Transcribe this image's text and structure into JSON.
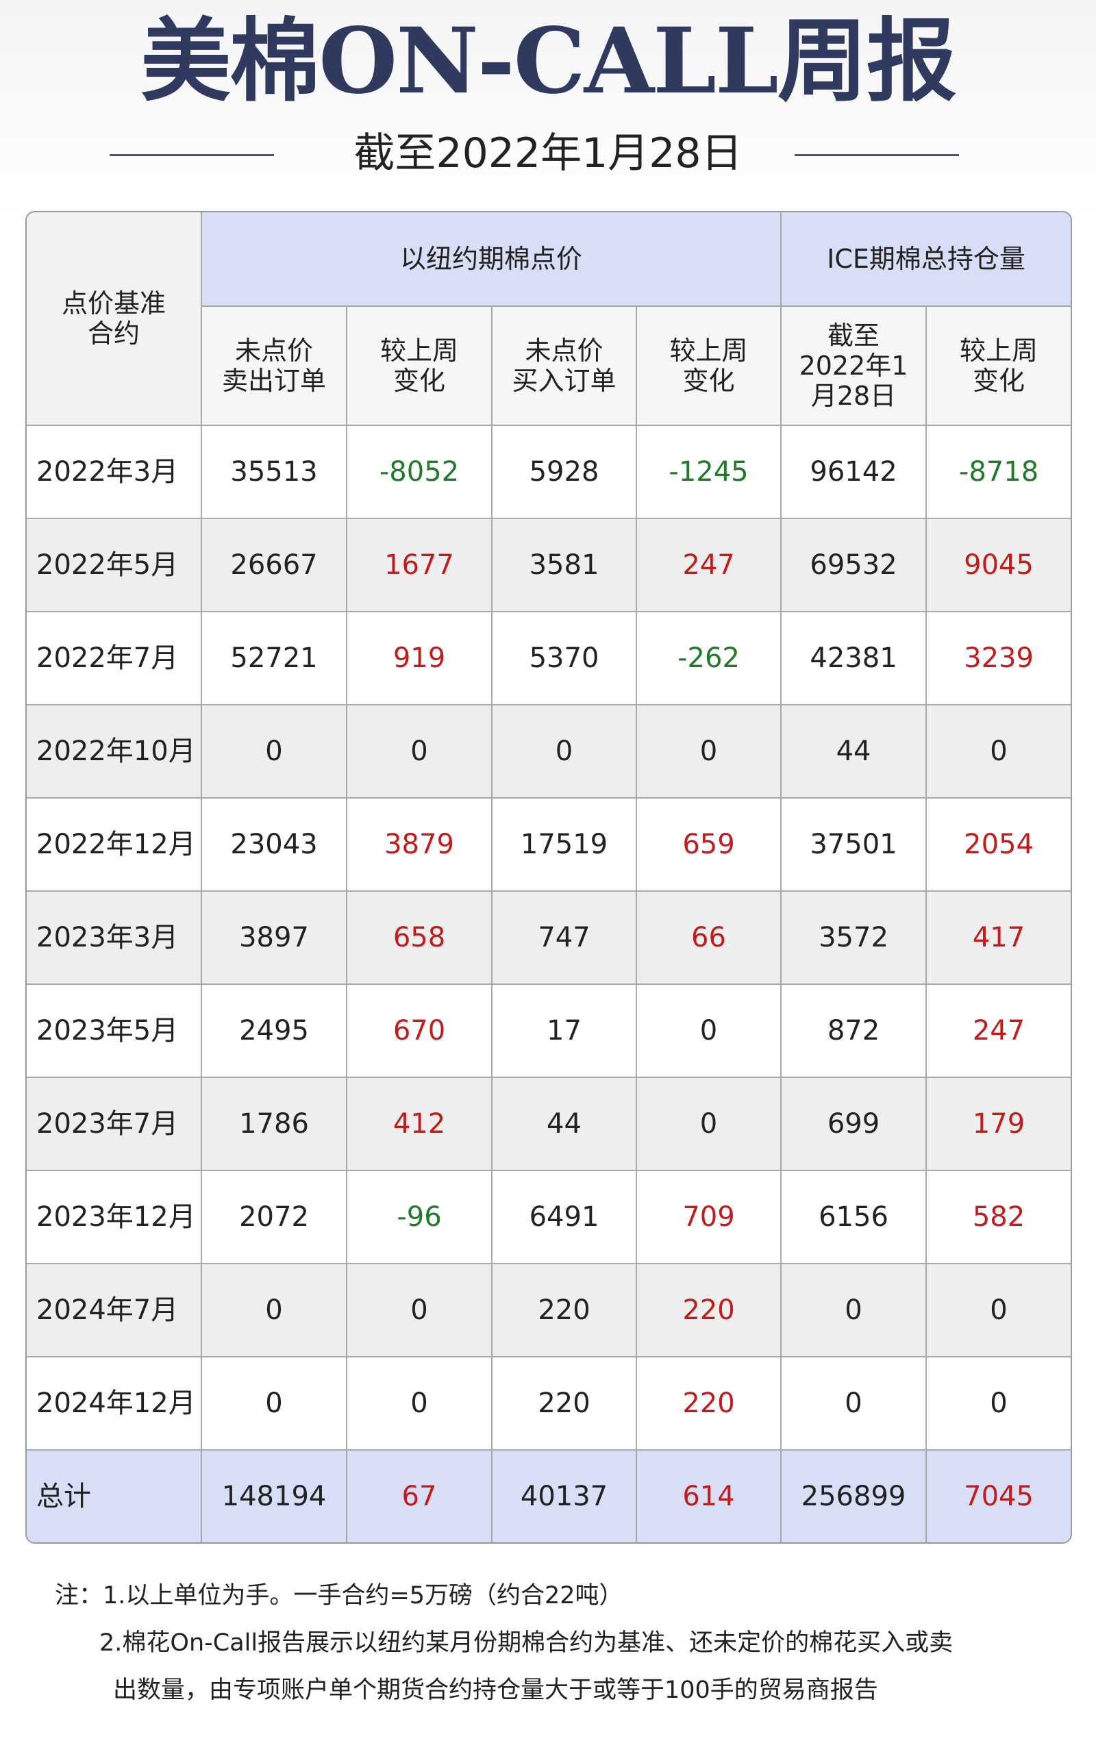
{
  "header": {
    "title": "美棉ON-CALL周报",
    "subtitle": "截至2022年1月28日"
  },
  "table": {
    "corner": "点价基准\n合约",
    "groups": [
      "以纽约期棉点价",
      "ICE期棉总持仓量"
    ],
    "columns": [
      "未点价\n卖出订单",
      "较上周\n变化",
      "未点价\n买入订单",
      "较上周\n变化",
      "截至\n2022年1\n月28日",
      "较上周\n变化"
    ],
    "rows": [
      [
        "2022年3月",
        35513,
        -8052,
        5928,
        -1245,
        96142,
        -8718
      ],
      [
        "2022年5月",
        26667,
        1677,
        3581,
        247,
        69532,
        9045
      ],
      [
        "2022年7月",
        52721,
        919,
        5370,
        -262,
        42381,
        3239
      ],
      [
        "2022年10月",
        0,
        0,
        0,
        0,
        44,
        0
      ],
      [
        "2022年12月",
        23043,
        3879,
        17519,
        659,
        37501,
        2054
      ],
      [
        "2023年3月",
        3897,
        658,
        747,
        66,
        3572,
        417
      ],
      [
        "2023年5月",
        2495,
        670,
        17,
        0,
        872,
        247
      ],
      [
        "2023年7月",
        1786,
        412,
        44,
        0,
        699,
        179
      ],
      [
        "2023年12月",
        2072,
        -96,
        6491,
        709,
        6156,
        582
      ],
      [
        "2024年7月",
        0,
        0,
        220,
        220,
        0,
        0
      ],
      [
        "2024年12月",
        0,
        0,
        220,
        220,
        0,
        0
      ]
    ],
    "total": [
      "总计",
      148194,
      67,
      40137,
      614,
      256899,
      7045
    ]
  },
  "notes": [
    "注：1.以上单位为手。一手合约=5万磅（约合22吨）",
    "2.棉花On-Call报告展示以纽约某月份期棉合约为基准、还未定价的棉花买入或卖",
    "出数量，由专项账户单个期货合约持仓量大于或等于100手的贸易商报告"
  ]
}
